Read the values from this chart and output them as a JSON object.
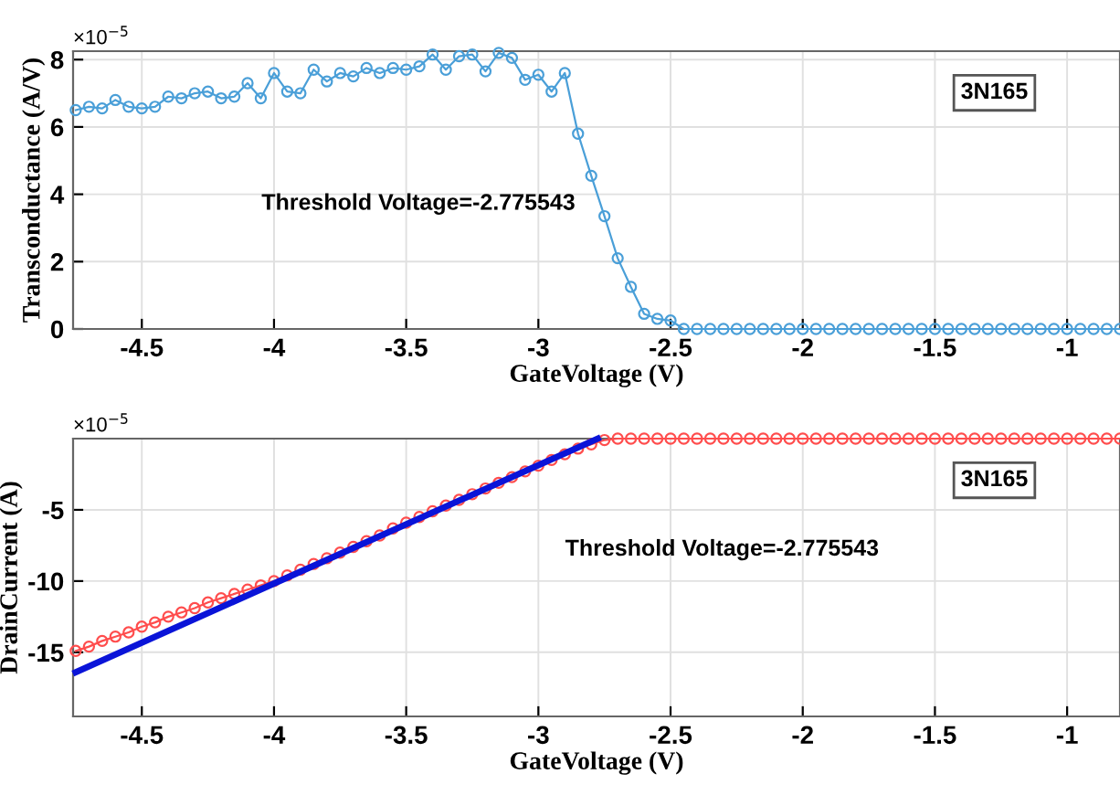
{
  "chart_data": [
    {
      "type": "line",
      "xlabel": "GateVoltage (V)",
      "ylabel": "Transconductance (A/V)",
      "xlim": [
        -4.76,
        -0.8
      ],
      "ylim": [
        0,
        8.25
      ],
      "xticks": [
        -4.5,
        -4,
        -3.5,
        -3,
        -2.5,
        -2,
        -1.5,
        -1
      ],
      "yticks": [
        0,
        2,
        4,
        6,
        8
      ],
      "grid": true,
      "annotations": [
        "×10$^{−5}$",
        "Threshold Voltage=-2.775543",
        "3N165"
      ],
      "series": [
        {
          "color": "#4a9fd8",
          "marker": "circle",
          "line_style": "solid",
          "x": [
            -4.75,
            -4.7,
            -4.65,
            -4.6,
            -4.55,
            -4.5,
            -4.45,
            -4.4,
            -4.35,
            -4.3,
            -4.25,
            -4.2,
            -4.15,
            -4.1,
            -4.05,
            -4.0,
            -3.95,
            -3.9,
            -3.85,
            -3.8,
            -3.75,
            -3.7,
            -3.65,
            -3.6,
            -3.55,
            -3.5,
            -3.45,
            -3.4,
            -3.35,
            -3.3,
            -3.25,
            -3.2,
            -3.15,
            -3.1,
            -3.05,
            -3.0,
            -2.95,
            -2.9,
            -2.85,
            -2.8,
            -2.75,
            -2.7,
            -2.65,
            -2.6,
            -2.55,
            -2.5,
            -2.45,
            -2.4,
            -2.35,
            -2.3,
            -2.25,
            -2.2,
            -2.15,
            -2.1,
            -2.05,
            -2.0,
            -1.95,
            -1.9,
            -1.85,
            -1.8,
            -1.75,
            -1.7,
            -1.65,
            -1.6,
            -1.55,
            -1.5,
            -1.45,
            -1.4,
            -1.35,
            -1.3,
            -1.25,
            -1.2,
            -1.15,
            -1.1,
            -1.05,
            -1.0,
            -0.95,
            -0.9,
            -0.85,
            -0.8
          ],
          "values": [
            6.5,
            6.6,
            6.55,
            6.8,
            6.6,
            6.55,
            6.6,
            6.9,
            6.85,
            7.0,
            7.05,
            6.85,
            6.9,
            7.3,
            6.85,
            7.6,
            7.05,
            7.0,
            7.7,
            7.35,
            7.6,
            7.5,
            7.75,
            7.6,
            7.75,
            7.7,
            7.8,
            8.15,
            7.7,
            8.1,
            8.15,
            7.65,
            8.2,
            8.05,
            7.4,
            7.55,
            7.05,
            7.6,
            5.8,
            4.55,
            3.35,
            2.1,
            1.25,
            0.45,
            0.3,
            0.25,
            0,
            0,
            0,
            0,
            0,
            0,
            0,
            0,
            0,
            0,
            0,
            0,
            0,
            0,
            0,
            0,
            0,
            0,
            0,
            0,
            0,
            0,
            0,
            0,
            0,
            0,
            0,
            0,
            0,
            0,
            0,
            0,
            0,
            0
          ]
        }
      ]
    },
    {
      "type": "line",
      "xlabel": "GateVoltage (V)",
      "ylabel": "DrainCurrent (A)",
      "xlim": [
        -4.76,
        -0.8
      ],
      "ylim": [
        -19.5,
        0
      ],
      "xticks": [
        -4.5,
        -4,
        -3.5,
        -3,
        -2.5,
        -2,
        -1.5,
        -1
      ],
      "yticks": [
        -15,
        -10,
        -5
      ],
      "grid": true,
      "annotations": [
        "×10$^{−5}$",
        "Threshold Voltage=-2.775543",
        "3N165"
      ],
      "series": [
        {
          "color": "#ff4d4d",
          "marker": "circle",
          "line_style": "solid",
          "x": [
            -4.75,
            -4.7,
            -4.65,
            -4.6,
            -4.55,
            -4.5,
            -4.45,
            -4.4,
            -4.35,
            -4.3,
            -4.25,
            -4.2,
            -4.15,
            -4.1,
            -4.05,
            -4.0,
            -3.95,
            -3.9,
            -3.85,
            -3.8,
            -3.75,
            -3.7,
            -3.65,
            -3.6,
            -3.55,
            -3.5,
            -3.45,
            -3.4,
            -3.35,
            -3.3,
            -3.25,
            -3.2,
            -3.15,
            -3.1,
            -3.05,
            -3.0,
            -2.95,
            -2.9,
            -2.85,
            -2.8,
            -2.75,
            -2.7,
            -2.65,
            -2.6,
            -2.55,
            -2.5,
            -2.45,
            -2.4,
            -2.35,
            -2.3,
            -2.25,
            -2.2,
            -2.15,
            -2.1,
            -2.05,
            -2.0,
            -1.95,
            -1.9,
            -1.85,
            -1.8,
            -1.75,
            -1.7,
            -1.65,
            -1.6,
            -1.55,
            -1.5,
            -1.45,
            -1.4,
            -1.35,
            -1.3,
            -1.25,
            -1.2,
            -1.15,
            -1.1,
            -1.05,
            -1.0,
            -0.95,
            -0.9,
            -0.85,
            -0.8
          ],
          "values": [
            -14.9,
            -14.6,
            -14.2,
            -13.9,
            -13.6,
            -13.2,
            -12.9,
            -12.5,
            -12.2,
            -11.9,
            -11.5,
            -11.2,
            -10.9,
            -10.6,
            -10.3,
            -10.0,
            -9.6,
            -9.2,
            -8.8,
            -8.4,
            -8.0,
            -7.6,
            -7.2,
            -6.8,
            -6.3,
            -5.9,
            -5.5,
            -5.1,
            -4.7,
            -4.3,
            -3.9,
            -3.5,
            -3.1,
            -2.7,
            -2.3,
            -1.9,
            -1.5,
            -1.1,
            -0.7,
            -0.4,
            -0.1,
            0,
            0,
            0,
            0,
            0,
            0,
            0,
            0,
            0,
            0,
            0,
            0,
            0,
            0,
            0,
            0,
            0,
            0,
            0,
            0,
            0,
            0,
            0,
            0,
            0,
            0,
            0,
            0,
            0,
            0,
            0,
            0,
            0,
            0,
            0,
            0,
            0,
            0,
            0
          ]
        },
        {
          "color": "#0a14d8",
          "marker": "none",
          "line_style": "solid",
          "x": [
            -4.75,
            -2.775543
          ],
          "values": [
            -16.4,
            0
          ]
        }
      ]
    }
  ]
}
